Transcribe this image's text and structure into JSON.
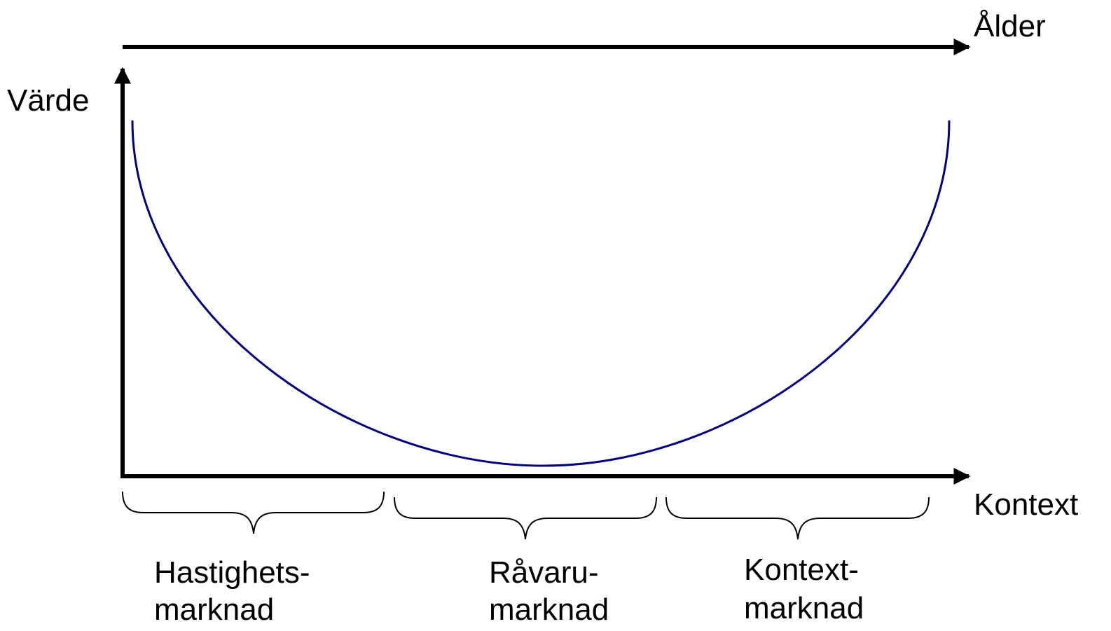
{
  "axes": {
    "top_label": "Ålder",
    "y_label": "Värde",
    "x_label": "Kontext"
  },
  "segments": [
    {
      "line1": "Hastighets-",
      "line2": "marknad"
    },
    {
      "line1": "Råvaru-",
      "line2": "marknad"
    },
    {
      "line1": "Kontext-",
      "line2": "marknad"
    }
  ]
}
